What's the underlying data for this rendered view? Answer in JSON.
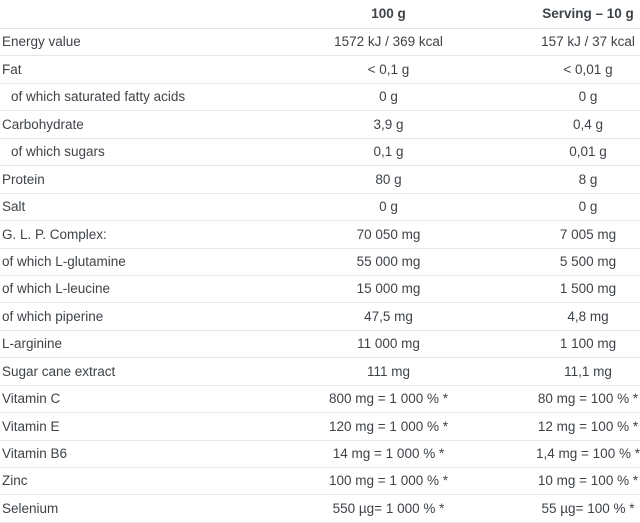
{
  "table": {
    "columns": {
      "label": "",
      "per_100g": "100 g",
      "per_serving": "Serving – 10 g"
    },
    "rows": [
      {
        "label": "Energy value",
        "per_100g": "1572 kJ / 369 kcal",
        "per_serving": "157 kJ / 37 kcal"
      },
      {
        "label": "Fat",
        "per_100g": "< 0,1 g",
        "per_serving": "< 0,01 g"
      },
      {
        "label": "of which saturated fatty acids",
        "per_100g": "0 g",
        "per_serving": "0 g"
      },
      {
        "label": "Carbohydrate",
        "per_100g": "3,9 g",
        "per_serving": "0,4 g"
      },
      {
        "label": "of which sugars",
        "per_100g": "0,1 g",
        "per_serving": "0,01 g"
      },
      {
        "label": "Protein",
        "per_100g": "80 g",
        "per_serving": "8 g"
      },
      {
        "label": "Salt",
        "per_100g": "0 g",
        "per_serving": "0 g"
      },
      {
        "label": "G. L. P. Complex:",
        "per_100g": "70 050 mg",
        "per_serving": "7 005 mg"
      },
      {
        "label": "of which L-glutamine",
        "per_100g": "55 000 mg",
        "per_serving": "5 500 mg"
      },
      {
        "label": "of which L-leucine",
        "per_100g": "15 000 mg",
        "per_serving": "1 500 mg"
      },
      {
        "label": "of which piperine",
        "per_100g": "47,5 mg",
        "per_serving": "4,8 mg"
      },
      {
        "label": "L-arginine",
        "per_100g": "11 000 mg",
        "per_serving": "1 100 mg"
      },
      {
        "label": "Sugar cane extract",
        "per_100g": "111 mg",
        "per_serving": "11,1 mg"
      },
      {
        "label": "Vitamin C",
        "per_100g": "800 mg = 1 000 % *",
        "per_serving": "80 mg = 100 % *"
      },
      {
        "label": "Vitamin E",
        "per_100g": "120 mg = 1 000 % *",
        "per_serving": "12 mg = 100 % *"
      },
      {
        "label": "Vitamin B6",
        "per_100g": "14 mg = 1 000 % *",
        "per_serving": "1,4 mg = 100 % *"
      },
      {
        "label": "Zinc",
        "per_100g": "100 mg = 1 000 % *",
        "per_serving": "10 mg = 100 % *"
      },
      {
        "label": "Selenium",
        "per_100g": "550 µg= 1 000 % *",
        "per_serving": "55 µg= 100 % *"
      }
    ]
  },
  "colors": {
    "text": "#3e4348",
    "row_border": "#e7e7e7",
    "background": "#ffffff"
  }
}
